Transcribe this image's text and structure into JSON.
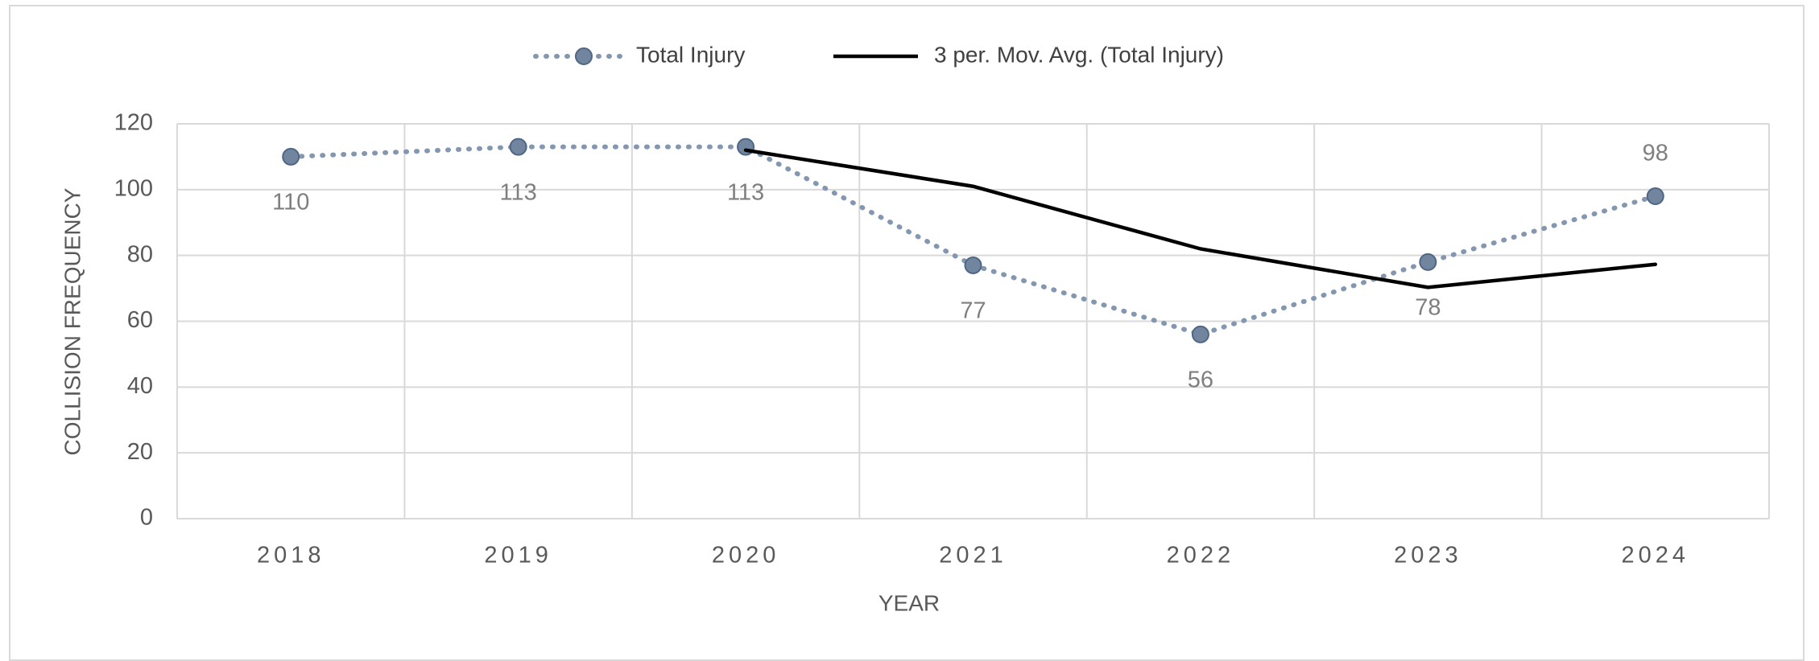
{
  "chart_data": {
    "type": "line",
    "categories": [
      "2018",
      "2019",
      "2020",
      "2021",
      "2022",
      "2023",
      "2024"
    ],
    "series": [
      {
        "name": "Total Injury",
        "color": "#8497b0",
        "values": [
          110,
          113,
          113,
          77,
          56,
          78,
          98
        ]
      },
      {
        "name": "3 per. Mov. Avg. (Total Injury)",
        "color": "#000000",
        "values": [
          null,
          null,
          112,
          101,
          82,
          70.3,
          77.3
        ]
      }
    ],
    "xlabel": "YEAR",
    "ylabel": "COLLISION FREQUENCY",
    "ylim": [
      0,
      120
    ],
    "yticks": [
      0,
      20,
      40,
      60,
      80,
      100,
      120
    ],
    "grid": true,
    "legend": "top"
  }
}
